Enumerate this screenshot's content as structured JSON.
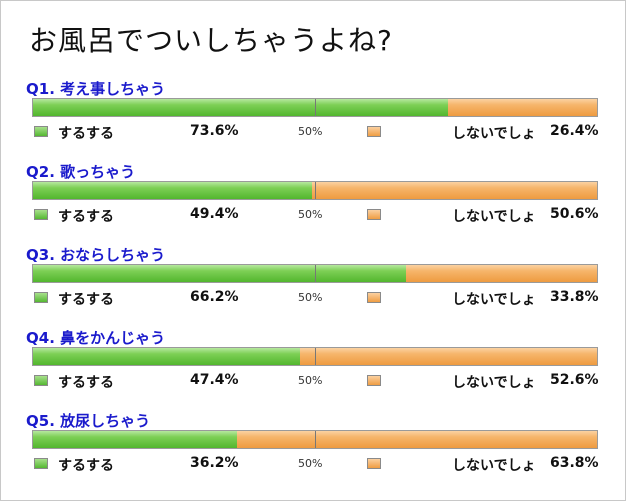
{
  "title": "お風呂でついしちゃうよね?",
  "colors": {
    "yes": "#5cbf38",
    "no": "#f3a75a",
    "question": "#1a1acc"
  },
  "chart_data": {
    "type": "bar",
    "stacked": true,
    "orientation": "horizontal",
    "title": "お風呂でついしちゃうよね?",
    "xlim": [
      0,
      100
    ],
    "midline_label": "50%",
    "categories": [
      "Q1. 考え事しちゃう",
      "Q2. 歌っちゃう",
      "Q3. おならしちゃう",
      "Q4. 鼻をかんじゃう",
      "Q5. 放尿しちゃう"
    ],
    "series": [
      {
        "name": "するする",
        "values": [
          73.6,
          49.4,
          66.2,
          47.4,
          36.2
        ],
        "labels": [
          "73.6%",
          "49.4%",
          "66.2%",
          "47.4%",
          "36.2%"
        ]
      },
      {
        "name": "しないでしょ",
        "values": [
          26.4,
          50.6,
          33.8,
          52.6,
          63.8
        ],
        "labels": [
          "26.4%",
          "50.6%",
          "33.8%",
          "52.6%",
          "63.8%"
        ]
      }
    ]
  }
}
